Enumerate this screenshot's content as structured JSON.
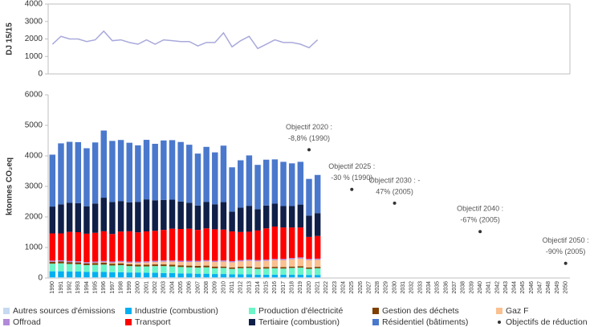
{
  "chart_data": [
    {
      "type": "line",
      "ylabel": "DJ 15/15",
      "ylim": [
        0,
        4000
      ],
      "yticks": [
        0,
        1000,
        2000,
        3000,
        4000
      ],
      "series": [
        {
          "color": "#a9a9dc",
          "values": [
            1700,
            2150,
            2000,
            2000,
            1850,
            1950,
            2450,
            1900,
            1950,
            1800,
            1700,
            1950,
            1700,
            1950,
            1900,
            1850,
            1850,
            1600,
            1800,
            1800,
            2350,
            1550,
            1900,
            2150,
            1450,
            1700,
            1950,
            1800,
            1800,
            1700,
            1500,
            1950
          ]
        }
      ]
    },
    {
      "type": "bar",
      "stacked": true,
      "ylabel": "ktonnes CO₂eq",
      "ylim": [
        0,
        6000
      ],
      "yticks": [
        0,
        1000,
        2000,
        3000,
        4000,
        5000,
        6000
      ],
      "categories": [
        1990,
        1991,
        1992,
        1993,
        1994,
        1995,
        1996,
        1997,
        1998,
        1999,
        2000,
        2001,
        2002,
        2003,
        2004,
        2005,
        2006,
        2007,
        2008,
        2009,
        2010,
        2011,
        2012,
        2013,
        2014,
        2015,
        2016,
        2017,
        2018,
        2019,
        2020,
        2021,
        2022,
        2023,
        2024,
        2025,
        2026,
        2027,
        2028,
        2029,
        2030,
        2031,
        2032,
        2033,
        2034,
        2035,
        2036,
        2037,
        2038,
        2039,
        2040,
        2041,
        2042,
        2043,
        2044,
        2045,
        2046,
        2047,
        2048,
        2049,
        2050
      ],
      "series": [
        {
          "name": "Autres sources d'émissions",
          "color": "#c6d9f0",
          "values": [
            20,
            20,
            20,
            20,
            20,
            20,
            20,
            20,
            20,
            20,
            20,
            20,
            20,
            20,
            20,
            20,
            20,
            20,
            20,
            20,
            20,
            20,
            20,
            20,
            20,
            20,
            20,
            20,
            20,
            20,
            20,
            20,
            null,
            null,
            null,
            null,
            null,
            null,
            null,
            null,
            null,
            null,
            null,
            null,
            null,
            null,
            null,
            null,
            null,
            null,
            null,
            null,
            null,
            null,
            null,
            null,
            null,
            null,
            null,
            null,
            null
          ]
        },
        {
          "name": "Industrie (combustion)",
          "color": "#00b0f0",
          "values": [
            200,
            200,
            190,
            190,
            180,
            180,
            180,
            170,
            170,
            160,
            160,
            150,
            150,
            140,
            140,
            130,
            130,
            120,
            120,
            110,
            110,
            100,
            100,
            100,
            90,
            90,
            90,
            90,
            90,
            90,
            80,
            80,
            null,
            null,
            null,
            null,
            null,
            null,
            null,
            null,
            null,
            null,
            null,
            null,
            null,
            null,
            null,
            null,
            null,
            null,
            null,
            null,
            null,
            null,
            null,
            null,
            null,
            null,
            null,
            null,
            null
          ]
        },
        {
          "name": "Production d'électricité",
          "color": "#6cf5c8",
          "values": [
            250,
            260,
            250,
            240,
            220,
            230,
            240,
            220,
            230,
            210,
            200,
            210,
            220,
            230,
            220,
            210,
            200,
            200,
            210,
            190,
            200,
            180,
            200,
            210,
            190,
            200,
            210,
            200,
            220,
            230,
            200,
            220,
            null,
            null,
            null,
            null,
            null,
            null,
            null,
            null,
            null,
            null,
            null,
            null,
            null,
            null,
            null,
            null,
            null,
            null,
            null,
            null,
            null,
            null,
            null,
            null,
            null,
            null,
            null,
            null,
            null
          ]
        },
        {
          "name": "Gestion des déchets",
          "color": "#7f3f00",
          "values": [
            60,
            60,
            60,
            60,
            60,
            60,
            60,
            60,
            60,
            60,
            55,
            55,
            55,
            55,
            55,
            55,
            55,
            55,
            55,
            55,
            45,
            45,
            45,
            45,
            45,
            45,
            45,
            45,
            45,
            45,
            45,
            45,
            null,
            null,
            null,
            null,
            null,
            null,
            null,
            null,
            null,
            null,
            null,
            null,
            null,
            null,
            null,
            null,
            null,
            null,
            null,
            null,
            null,
            null,
            null,
            null,
            null,
            null,
            null,
            null,
            null
          ]
        },
        {
          "name": "Gaz F",
          "color": "#fac090",
          "values": [
            0,
            0,
            0,
            0,
            0,
            10,
            20,
            30,
            40,
            50,
            60,
            70,
            80,
            90,
            100,
            110,
            120,
            130,
            140,
            150,
            160,
            170,
            180,
            190,
            200,
            210,
            220,
            230,
            240,
            250,
            240,
            230,
            null,
            null,
            null,
            null,
            null,
            null,
            null,
            null,
            null,
            null,
            null,
            null,
            null,
            null,
            null,
            null,
            null,
            null,
            null,
            null,
            null,
            null,
            null,
            null,
            null,
            null,
            null,
            null,
            null
          ]
        },
        {
          "name": "Offroad",
          "color": "#b28ad8",
          "values": [
            40,
            40,
            40,
            40,
            40,
            40,
            40,
            40,
            40,
            40,
            40,
            40,
            40,
            40,
            40,
            40,
            40,
            40,
            40,
            40,
            40,
            40,
            40,
            40,
            40,
            40,
            40,
            40,
            40,
            40,
            40,
            40,
            null,
            null,
            null,
            null,
            null,
            null,
            null,
            null,
            null,
            null,
            null,
            null,
            null,
            null,
            null,
            null,
            null,
            null,
            null,
            null,
            null,
            null,
            null,
            null,
            null,
            null,
            null,
            null,
            null
          ]
        },
        {
          "name": "Transport",
          "color": "#ff0000",
          "values": [
            890,
            880,
            950,
            950,
            930,
            940,
            970,
            900,
            960,
            990,
            960,
            980,
            980,
            1000,
            1040,
            1040,
            1050,
            1010,
            1040,
            1030,
            1010,
            970,
            920,
            910,
            970,
            1020,
            1060,
            1030,
            1000,
            980,
            720,
            740,
            null,
            null,
            null,
            null,
            null,
            null,
            null,
            null,
            null,
            null,
            null,
            null,
            null,
            null,
            null,
            null,
            null,
            null,
            null,
            null,
            null,
            null,
            null,
            null,
            null,
            null,
            null,
            null,
            null
          ]
        },
        {
          "name": "Tertiaire (combustion)",
          "color": "#0f1f48",
          "values": [
            880,
            950,
            950,
            950,
            900,
            960,
            1100,
            1050,
            1000,
            950,
            1000,
            1050,
            1000,
            980,
            950,
            900,
            850,
            800,
            870,
            820,
            900,
            650,
            800,
            850,
            700,
            750,
            750,
            700,
            700,
            750,
            700,
            750,
            null,
            null,
            null,
            null,
            null,
            null,
            null,
            null,
            null,
            null,
            null,
            null,
            null,
            null,
            null,
            null,
            null,
            null,
            null,
            null,
            null,
            null,
            null,
            null,
            null,
            null,
            null,
            null,
            null
          ]
        },
        {
          "name": "Résidentiel (bâtiments)",
          "color": "#4a78cc",
          "values": [
            1700,
            2000,
            2000,
            2000,
            1900,
            2000,
            2200,
            2000,
            2000,
            1950,
            1850,
            1950,
            1850,
            1950,
            1950,
            1950,
            1900,
            1700,
            1800,
            1700,
            1850,
            1450,
            1550,
            1650,
            1450,
            1500,
            1450,
            1450,
            1400,
            1400,
            1200,
            1250,
            null,
            null,
            null,
            null,
            null,
            null,
            null,
            null,
            null,
            null,
            null,
            null,
            null,
            null,
            null,
            null,
            null,
            null,
            null,
            null,
            null,
            null,
            null,
            null,
            null,
            null,
            null,
            null,
            null
          ]
        }
      ],
      "objectives": {
        "name": "Objectifs de réduction",
        "color": "#333333",
        "x": [
          2020,
          2025,
          2030,
          2040,
          2050
        ],
        "values": [
          4200,
          2900,
          2450,
          1520,
          480
        ],
        "annotations": [
          [
            "Objectif 2020 :",
            "-8,8% (1990)"
          ],
          [
            "Objectif 2025 :",
            "-30 % (1990)"
          ],
          [
            "Objectif 2030 :   -",
            "47% (2005)"
          ],
          [
            "Objectif 2040 :",
            "-67% (2005)"
          ],
          [
            "Objectif 2050 :",
            "-90% (2005)"
          ]
        ]
      }
    }
  ]
}
